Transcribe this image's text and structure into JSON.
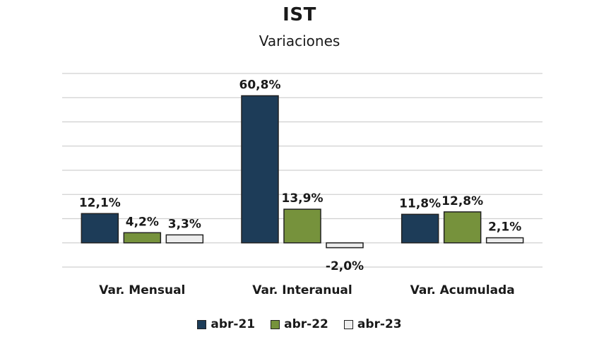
{
  "chart_data": {
    "type": "bar",
    "title": "IST",
    "subtitle": "Variaciones",
    "categories": [
      "Var. Mensual",
      "Var. Interanual",
      "Var. Acumulada"
    ],
    "series": [
      {
        "name": "abr-21",
        "color": "#1d3c58",
        "values": [
          12.1,
          60.8,
          11.8
        ],
        "labels": [
          "12,1%",
          "60,8%",
          "11,8%"
        ]
      },
      {
        "name": "abr-22",
        "color": "#76923c",
        "values": [
          4.2,
          13.9,
          12.8
        ],
        "labels": [
          "4,2%",
          "13,9%",
          "12,8%"
        ]
      },
      {
        "name": "abr-23",
        "color": "#ededed",
        "values": [
          3.3,
          -2.0,
          2.1
        ],
        "labels": [
          "3,3%",
          "-2,0%",
          "2,1%"
        ]
      }
    ],
    "ylim": [
      -10,
      70
    ],
    "grid": true,
    "legend_position": "bottom",
    "xlabel": "",
    "ylabel": ""
  }
}
